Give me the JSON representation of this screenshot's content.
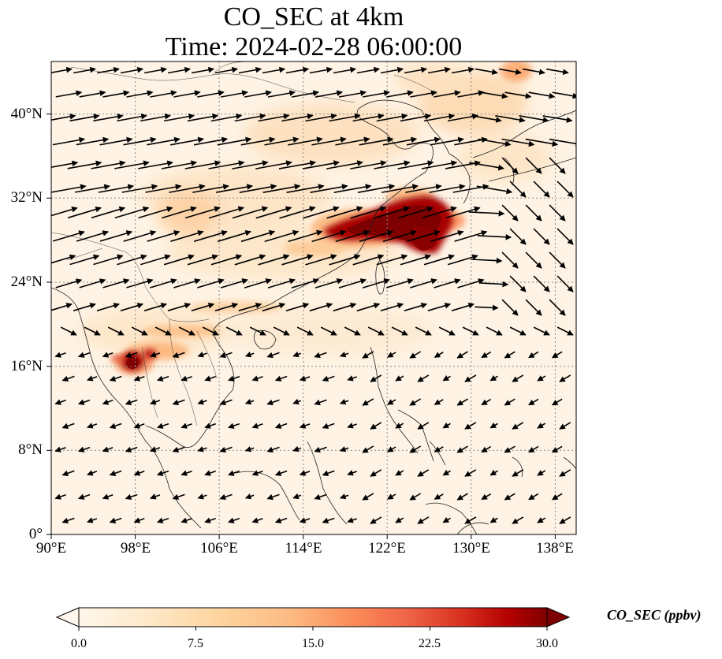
{
  "map": {
    "title_line1": "CO_SEC at 4km",
    "title_line2": "Time: 2024-02-28 06:00:00",
    "lon_ticks": [
      "90°E",
      "98°E",
      "106°E",
      "114°E",
      "122°E",
      "130°E",
      "138°E"
    ],
    "lat_ticks": [
      "40°N",
      "32°N",
      "24°N",
      "16°N",
      "8°N",
      "0°"
    ],
    "extent": {
      "lon_min": 90,
      "lon_max": 140,
      "lat_min": 0,
      "lat_max": 45
    },
    "gridlines": true,
    "colormap": "OrRd",
    "colors": {
      "low": "#fff7ec",
      "mid": "#fdbb84",
      "high": "#7f0000",
      "coast": "#222222",
      "wind": "#000000"
    }
  },
  "colorbar": {
    "label": "CO_SEC (ppbv)",
    "ticks": [
      "0.0",
      "7.5",
      "15.0",
      "22.5",
      "30.0"
    ],
    "min": 0,
    "max": 30,
    "extend": "both"
  }
}
